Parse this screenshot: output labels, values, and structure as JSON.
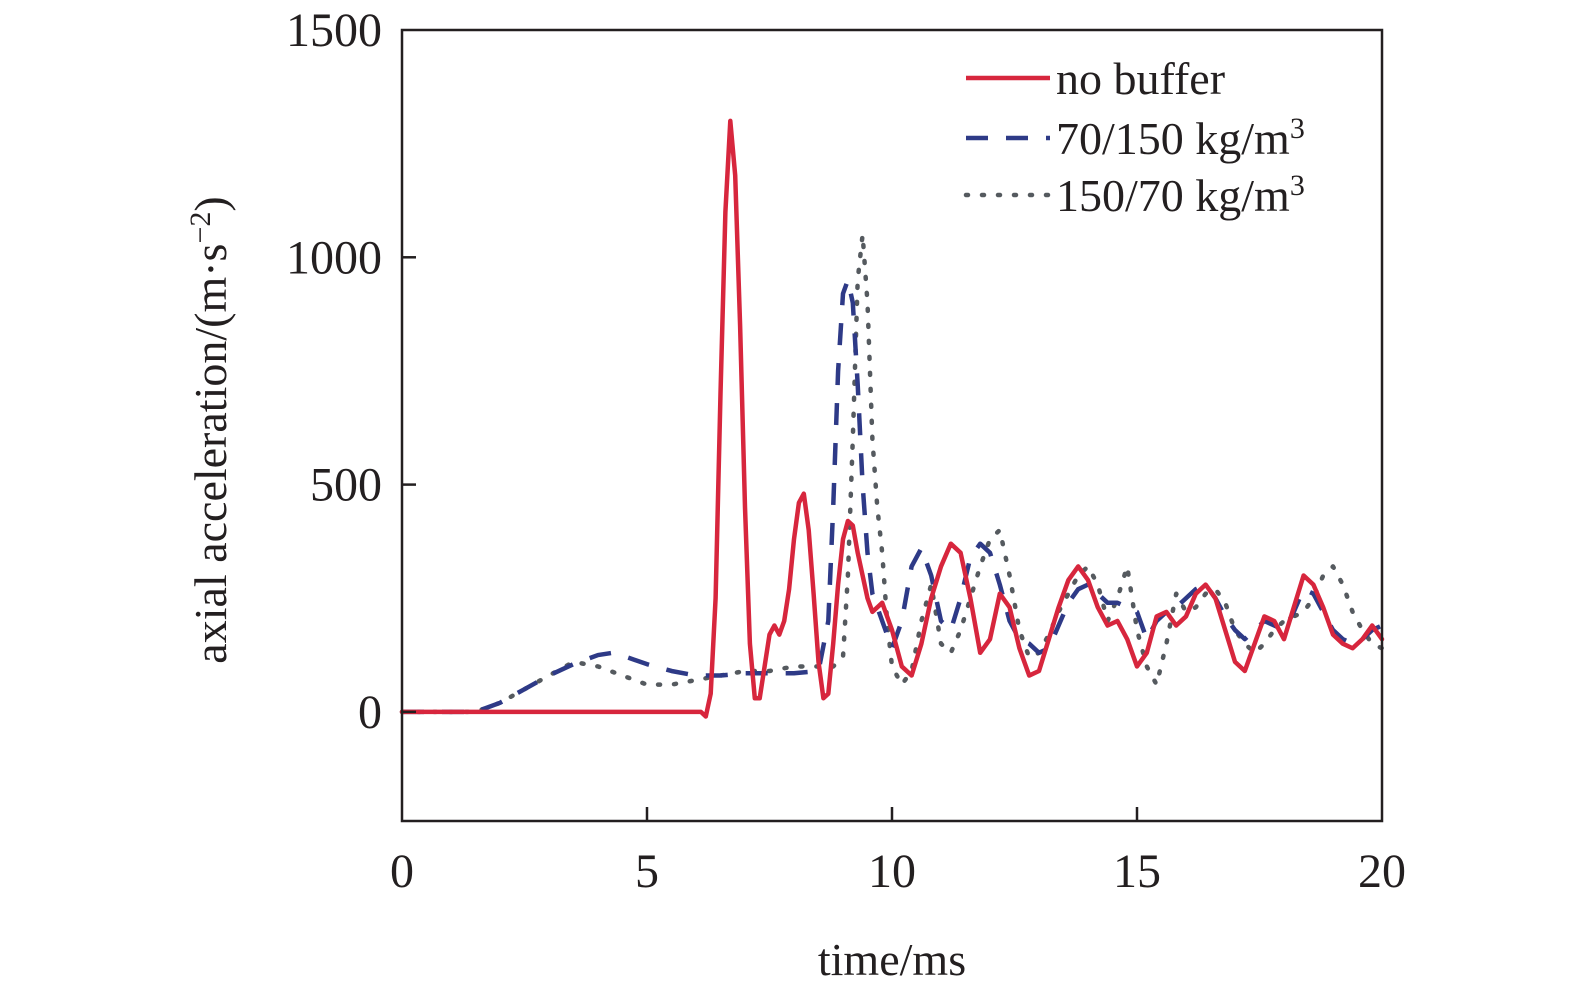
{
  "chart_data": {
    "type": "line",
    "title": "",
    "xlabel": "time/ms",
    "ylabel_main": "axial acceleration/(m·s",
    "ylabel_sup": "−2",
    "ylabel_close": ")",
    "xlim": [
      0,
      20
    ],
    "ylim": [
      -240,
      1500
    ],
    "xticks": [
      0,
      5,
      10,
      15,
      20
    ],
    "xtick_labels": [
      "0",
      "5",
      "10",
      "15",
      "20"
    ],
    "yticks": [
      0,
      500,
      1000,
      1500
    ],
    "ytick_labels": [
      "0",
      "500",
      "1000",
      "1500"
    ],
    "grid": false,
    "legend_position": "top-right",
    "series": [
      {
        "name": "no buffer",
        "legend_main": "no buffer",
        "legend_sup": "",
        "color": "#d7263d",
        "style": "solid",
        "x": [
          0,
          1.0,
          2.0,
          3.0,
          4.0,
          5.0,
          6.0,
          6.1,
          6.2,
          6.3,
          6.4,
          6.5,
          6.6,
          6.7,
          6.8,
          6.9,
          7.0,
          7.1,
          7.2,
          7.3,
          7.4,
          7.5,
          7.6,
          7.7,
          7.8,
          7.9,
          8.0,
          8.1,
          8.2,
          8.3,
          8.4,
          8.5,
          8.6,
          8.7,
          8.8,
          8.9,
          9.0,
          9.1,
          9.2,
          9.3,
          9.4,
          9.5,
          9.6,
          9.8,
          10.0,
          10.2,
          10.4,
          10.6,
          10.8,
          11.0,
          11.2,
          11.4,
          11.6,
          11.8,
          12.0,
          12.2,
          12.4,
          12.6,
          12.8,
          13.0,
          13.2,
          13.4,
          13.6,
          13.8,
          14.0,
          14.2,
          14.4,
          14.6,
          14.8,
          15.0,
          15.2,
          15.4,
          15.6,
          15.8,
          16.0,
          16.2,
          16.4,
          16.6,
          16.8,
          17.0,
          17.2,
          17.4,
          17.6,
          17.8,
          18.0,
          18.2,
          18.4,
          18.6,
          18.8,
          19.0,
          19.2,
          19.4,
          19.6,
          19.8,
          20.0
        ],
        "y": [
          0,
          0,
          0,
          0,
          0,
          0,
          0,
          0,
          -10,
          40,
          250,
          700,
          1100,
          1300,
          1180,
          850,
          450,
          150,
          30,
          30,
          100,
          170,
          190,
          170,
          200,
          270,
          380,
          460,
          480,
          400,
          260,
          110,
          30,
          40,
          150,
          280,
          380,
          420,
          410,
          350,
          300,
          250,
          220,
          240,
          180,
          100,
          80,
          150,
          250,
          320,
          370,
          350,
          250,
          130,
          160,
          260,
          230,
          140,
          80,
          90,
          160,
          230,
          290,
          320,
          290,
          230,
          190,
          200,
          160,
          100,
          130,
          210,
          220,
          190,
          210,
          260,
          280,
          250,
          180,
          110,
          90,
          150,
          210,
          200,
          160,
          230,
          300,
          280,
          230,
          170,
          150,
          140,
          160,
          190,
          160
        ]
      },
      {
        "name": "70/150 kg/m3",
        "legend_main": "70/150 kg/m",
        "legend_sup": "3",
        "color": "#2e3a87",
        "style": "dashed",
        "x": [
          0,
          1.0,
          1.5,
          2.0,
          2.5,
          3.0,
          3.5,
          4.0,
          4.3,
          4.6,
          5.0,
          5.5,
          6.0,
          6.5,
          7.0,
          7.5,
          8.0,
          8.5,
          8.7,
          8.8,
          8.9,
          9.0,
          9.1,
          9.2,
          9.3,
          9.4,
          9.5,
          9.6,
          9.8,
          10.0,
          10.2,
          10.4,
          10.6,
          10.8,
          11.0,
          11.2,
          11.4,
          11.6,
          11.8,
          12.0,
          12.2,
          12.4,
          12.6,
          12.8,
          13.0,
          13.2,
          13.4,
          13.6,
          13.8,
          14.0,
          14.2,
          14.4,
          14.6,
          14.8,
          15.0,
          15.2,
          15.4,
          15.6,
          15.8,
          16.0,
          16.2,
          16.4,
          16.6,
          16.8,
          17.0,
          17.2,
          17.4,
          17.6,
          17.8,
          18.0,
          18.2,
          18.4,
          18.6,
          18.8,
          19.0,
          19.2,
          19.4,
          19.6,
          19.8,
          20.0
        ],
        "y": [
          0,
          0,
          0,
          20,
          50,
          80,
          105,
          125,
          130,
          120,
          105,
          90,
          80,
          80,
          85,
          85,
          85,
          90,
          200,
          450,
          750,
          920,
          950,
          900,
          720,
          500,
          350,
          260,
          200,
          140,
          200,
          320,
          360,
          300,
          200,
          180,
          250,
          340,
          370,
          350,
          280,
          200,
          160,
          150,
          130,
          140,
          190,
          240,
          270,
          280,
          260,
          240,
          240,
          230,
          220,
          160,
          200,
          220,
          230,
          250,
          270,
          280,
          250,
          210,
          180,
          160,
          180,
          200,
          190,
          180,
          220,
          270,
          260,
          220,
          180,
          160,
          150,
          160,
          180,
          190
        ]
      },
      {
        "name": "150/70 kg/m3",
        "legend_main": "150/70 kg/m",
        "legend_sup": "3",
        "color": "#555a5f",
        "style": "dotted",
        "x": [
          0,
          1.0,
          1.5,
          2.0,
          2.5,
          3.0,
          3.5,
          4.0,
          4.5,
          5.0,
          5.5,
          6.0,
          6.5,
          7.0,
          7.5,
          8.0,
          8.5,
          8.8,
          9.0,
          9.1,
          9.2,
          9.3,
          9.4,
          9.5,
          9.6,
          9.7,
          9.8,
          9.9,
          10.0,
          10.2,
          10.4,
          10.6,
          10.8,
          11.0,
          11.2,
          11.4,
          11.6,
          11.8,
          12.0,
          12.2,
          12.4,
          12.6,
          12.8,
          13.0,
          13.2,
          13.4,
          13.6,
          13.8,
          14.0,
          14.2,
          14.4,
          14.6,
          14.8,
          15.0,
          15.2,
          15.4,
          15.6,
          15.8,
          16.0,
          16.2,
          16.4,
          16.6,
          16.8,
          17.0,
          17.2,
          17.4,
          17.6,
          17.8,
          18.0,
          18.2,
          18.4,
          18.6,
          18.8,
          19.0,
          19.2,
          19.4,
          19.6,
          19.8,
          20.0
        ],
        "y": [
          0,
          0,
          0,
          20,
          50,
          80,
          110,
          100,
          80,
          60,
          60,
          70,
          80,
          90,
          90,
          100,
          100,
          100,
          120,
          300,
          600,
          950,
          1050,
          900,
          600,
          450,
          350,
          200,
          100,
          60,
          90,
          200,
          280,
          150,
          130,
          180,
          250,
          320,
          380,
          400,
          300,
          180,
          120,
          130,
          170,
          220,
          260,
          300,
          320,
          280,
          200,
          250,
          320,
          180,
          100,
          60,
          150,
          260,
          220,
          230,
          260,
          270,
          240,
          180,
          150,
          130,
          150,
          180,
          200,
          210,
          220,
          250,
          300,
          320,
          280,
          220,
          180,
          150,
          140
        ]
      }
    ]
  }
}
